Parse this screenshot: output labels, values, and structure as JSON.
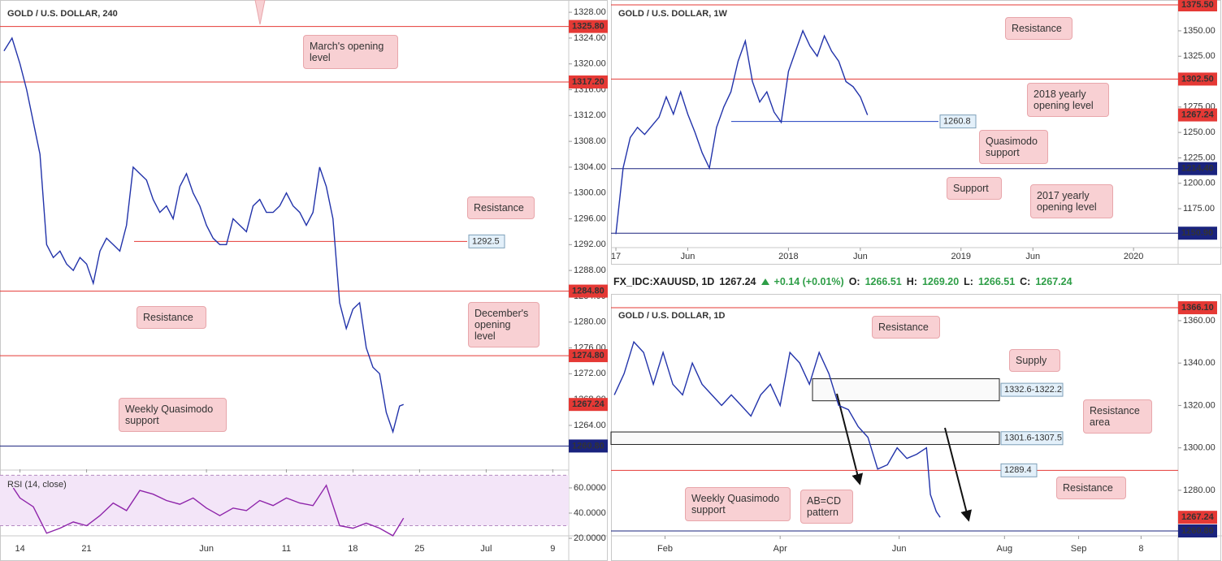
{
  "header": {
    "symbol": "FX_IDC:XAUUSD, 1D",
    "price": "1267.24",
    "change": "+0.14 (+0.01%)",
    "ohlc": [
      {
        "label": "O:",
        "value": "1266.51"
      },
      {
        "label": "H:",
        "value": "1269.20"
      },
      {
        "label": "L:",
        "value": "1266.51"
      },
      {
        "label": "C:",
        "value": "1267.24"
      }
    ]
  },
  "chart_data": [
    {
      "type": "line",
      "title": "GOLD / U.S. DOLLAR, 240",
      "color": "#2233aa",
      "x": [
        -1.2,
        -0.6,
        0,
        0.5,
        1,
        1.5,
        2,
        2.5,
        3,
        3.5,
        4,
        4.5,
        5,
        5.5,
        6,
        6.5,
        7,
        7.5,
        8,
        8.5,
        9,
        9.5,
        10,
        10.5,
        11,
        11.5,
        12,
        12.5,
        13,
        13.5,
        14,
        14.5,
        15,
        15.5,
        16,
        16.5,
        17,
        17.5,
        18,
        18.5,
        19,
        19.5,
        20,
        20.5,
        21,
        21.5,
        22,
        22.5,
        23,
        23.5,
        24,
        24.5,
        25,
        25.5,
        26,
        26.5,
        27,
        27.5,
        28,
        28.5,
        28.8
      ],
      "values": [
        1322,
        1324,
        1320,
        1316,
        1311,
        1306,
        1292,
        1290,
        1291,
        1289,
        1288,
        1290,
        1289,
        1286,
        1291,
        1293,
        1292,
        1291,
        1295,
        1304,
        1303,
        1302,
        1299,
        1297,
        1298,
        1296,
        1301,
        1303,
        1300,
        1298,
        1295,
        1293,
        1292,
        1292,
        1296,
        1295,
        1294,
        1298,
        1299,
        1297,
        1297,
        1298,
        1300,
        1298,
        1297,
        1295,
        1297,
        1304,
        1301,
        1296,
        1283,
        1279,
        1282,
        1283,
        1276,
        1273,
        1272,
        1266,
        1263,
        1267,
        1267.24
      ],
      "xlim": [
        -1.5,
        41.2
      ],
      "xticks": [
        {
          "value": 0,
          "label": "14"
        },
        {
          "value": 5,
          "label": "21"
        },
        {
          "value": 14,
          "label": "Jun"
        },
        {
          "value": 20,
          "label": "11"
        },
        {
          "value": 25,
          "label": "18"
        },
        {
          "value": 30,
          "label": "25"
        },
        {
          "value": 35,
          "label": "Jul"
        },
        {
          "value": 40,
          "label": "9"
        }
      ],
      "ylim": [
        1257.2,
        1329.9
      ],
      "yticks": [
        {
          "value": 1264,
          "label": "1264.00"
        },
        {
          "value": 1268,
          "label": "1268.00"
        },
        {
          "value": 1272,
          "label": "1272.00"
        },
        {
          "value": 1276,
          "label": "1276.00"
        },
        {
          "value": 1280,
          "label": "1280.00"
        },
        {
          "value": 1284,
          "label": "1284.00"
        },
        {
          "value": 1288,
          "label": "1288.00"
        },
        {
          "value": 1292,
          "label": "1292.00"
        },
        {
          "value": 1296,
          "label": "1296.00"
        },
        {
          "value": 1300,
          "label": "1300.00"
        },
        {
          "value": 1304,
          "label": "1304.00"
        },
        {
          "value": 1308,
          "label": "1308.00"
        },
        {
          "value": 1312,
          "label": "1312.00"
        },
        {
          "value": 1316,
          "label": "1316.00"
        },
        {
          "value": 1320,
          "label": "1320.00"
        },
        {
          "value": 1324,
          "label": "1324.00"
        },
        {
          "value": 1328,
          "label": "1328.00"
        }
      ],
      "levels": [
        {
          "value": 1325.8,
          "label": "1325.80",
          "color": "#e53935"
        },
        {
          "value": 1317.2,
          "label": "1317.20",
          "color": "#e53935"
        },
        {
          "value": 1284.8,
          "label": "1284.80",
          "color": "#e53935"
        },
        {
          "value": 1274.8,
          "label": "1274.80",
          "color": "#e53935"
        },
        {
          "value": 1292.5,
          "label": "1292.5",
          "color": "#e53935"
        },
        {
          "value": 1260.8,
          "label": "1260.80",
          "color": "#1a237e"
        }
      ],
      "last": {
        "value": 1267.24,
        "label": "1267.24",
        "color": "#e53935"
      },
      "annotations": [
        "March's opening level",
        "Resistance",
        "Resistance",
        "December's opening level",
        "Weekly Quasimodo support"
      ]
    },
    {
      "type": "line",
      "title": "RSI (14, close)",
      "color": "#8e24aa",
      "x": [
        -0.5,
        0,
        1,
        2,
        3,
        4,
        5,
        6,
        7,
        8,
        9,
        10,
        11,
        12,
        13,
        14,
        15,
        16,
        17,
        18,
        19,
        20,
        21,
        22,
        23,
        24,
        25,
        26,
        27,
        28,
        28.8
      ],
      "values": [
        60,
        52,
        45,
        24,
        28,
        33,
        30,
        38,
        48,
        42,
        58,
        55,
        50,
        47,
        52,
        44,
        38,
        44,
        42,
        50,
        46,
        52,
        48,
        46,
        62,
        30,
        28,
        32,
        28,
        22,
        36
      ],
      "ylim": [
        16.8,
        73.5
      ],
      "yticks": [
        {
          "value": 20,
          "label": "20.0000"
        },
        {
          "value": 40,
          "label": "40.0000"
        },
        {
          "value": 60,
          "label": "60.0000"
        }
      ],
      "band": [
        30,
        70
      ]
    },
    {
      "type": "line",
      "title": "GOLD / U.S. DOLLAR, 1W",
      "color": "#2233aa",
      "x": [
        0,
        0.5,
        1,
        1.5,
        2,
        3,
        3.5,
        4,
        4.5,
        5,
        5.5,
        6,
        6.5,
        7,
        7.5,
        8,
        8.5,
        9,
        9.5,
        10,
        10.5,
        11,
        11.5,
        12,
        12.5,
        13,
        13.5,
        14,
        14.5,
        15,
        15.5,
        16,
        16.5,
        17,
        17.5
      ],
      "values": [
        1150,
        1215,
        1245,
        1255,
        1248,
        1265,
        1285,
        1268,
        1290,
        1268,
        1250,
        1230,
        1215,
        1255,
        1275,
        1290,
        1320,
        1340,
        1300,
        1280,
        1290,
        1270,
        1260,
        1310,
        1330,
        1350,
        1335,
        1325,
        1345,
        1330,
        1320,
        1300,
        1295,
        1285,
        1267.24
      ],
      "xlim": [
        -0.34,
        39.1
      ],
      "xticks": [
        {
          "value": 0,
          "label": "17"
        },
        {
          "value": 5,
          "label": "Jun"
        },
        {
          "value": 12,
          "label": "2018"
        },
        {
          "value": 17,
          "label": "Jun"
        },
        {
          "value": 24,
          "label": "2019"
        },
        {
          "value": 29,
          "label": "Jun"
        },
        {
          "value": 36,
          "label": "2020"
        }
      ],
      "ylim": [
        1136.7,
        1380.3
      ],
      "yticks": [
        {
          "value": 1175,
          "label": "1175.00"
        },
        {
          "value": 1200,
          "label": "1200.00"
        },
        {
          "value": 1225,
          "label": "1225.00"
        },
        {
          "value": 1250,
          "label": "1250.00"
        },
        {
          "value": 1275,
          "label": "1275.00"
        },
        {
          "value": 1325,
          "label": "1325.00"
        },
        {
          "value": 1350,
          "label": "1350.00"
        }
      ],
      "levels": [
        {
          "value": 1375.5,
          "label": "1375.50",
          "color": "#e53935"
        },
        {
          "value": 1302.5,
          "label": "1302.50",
          "color": "#e53935"
        },
        {
          "value": 1214.4,
          "label": "1214.40",
          "color": "#1a237e"
        },
        {
          "value": 1150.9,
          "label": "1150.90",
          "color": "#1a237e"
        },
        {
          "value": 1260.8,
          "label": "1260.8",
          "color": "#1f3fbf"
        }
      ],
      "last": {
        "value": 1267.24,
        "label": "1267.24",
        "color": "#e53935"
      },
      "annotations": [
        "Resistance",
        "2018 yearly opening level",
        "Quasimodo support",
        "Support",
        "2017 yearly opening level"
      ]
    },
    {
      "type": "line",
      "title": "GOLD / U.S. DOLLAR, 1D",
      "color": "#2233aa",
      "x": [
        5,
        10,
        15,
        20,
        25,
        30,
        35,
        40,
        45,
        50,
        55,
        60,
        65,
        70,
        75,
        80,
        85,
        90,
        95,
        100,
        105,
        110,
        115,
        120,
        125,
        130,
        135,
        140,
        145,
        150,
        155,
        160,
        165,
        167,
        170,
        172
      ],
      "values": [
        1325,
        1335,
        1350,
        1345,
        1330,
        1345,
        1330,
        1325,
        1340,
        1330,
        1325,
        1320,
        1325,
        1320,
        1315,
        1325,
        1330,
        1320,
        1345,
        1340,
        1330,
        1345,
        1335,
        1320,
        1318,
        1310,
        1305,
        1290,
        1292,
        1300,
        1295,
        1297,
        1300,
        1278,
        1270,
        1267.24
      ],
      "xlim": [
        3.3,
        294
      ],
      "xticks": [
        {
          "value": 31,
          "label": "Feb"
        },
        {
          "value": 90,
          "label": "Apr"
        },
        {
          "value": 151,
          "label": "Jun"
        },
        {
          "value": 205,
          "label": "Aug"
        },
        {
          "value": 243,
          "label": "Sep"
        },
        {
          "value": 275,
          "label": "8"
        }
      ],
      "ylim": [
        1258.5,
        1368.8
      ],
      "yticks": [
        {
          "value": 1280,
          "label": "1280.00"
        },
        {
          "value": 1300,
          "label": "1300.00"
        },
        {
          "value": 1320,
          "label": "1320.00"
        },
        {
          "value": 1340,
          "label": "1340.00"
        },
        {
          "value": 1360,
          "label": "1360.00"
        }
      ],
      "levels": [
        {
          "value": 1366.1,
          "label": "1366.10",
          "color": "#e53935"
        },
        {
          "value": 1289.4,
          "label": "1289.4",
          "color": "#e53935"
        },
        {
          "value": 1260.8,
          "label": "1260.80",
          "color": "#1a237e"
        }
      ],
      "zones": [
        {
          "label": "1332.6-1322.2",
          "low": 1322.2,
          "high": 1332.6
        },
        {
          "label": "1301.6-1307.5",
          "low": 1301.6,
          "high": 1307.5
        }
      ],
      "last": {
        "value": 1267.24,
        "label": "1267.24",
        "color": "#e53935"
      },
      "annotations": [
        "Resistance",
        "Supply",
        "Resistance area",
        "Resistance",
        "AB=CD pattern",
        "Weekly Quasimodo support"
      ]
    }
  ]
}
